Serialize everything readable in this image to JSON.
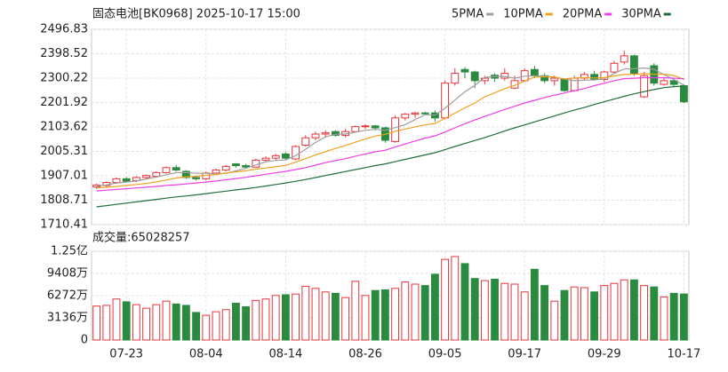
{
  "chart_data": [
    {
      "type": "candlestick",
      "title": "固态电池[BK0968] 2025-10-17 15:00",
      "up_color": "#e8333a",
      "down_color": "#2a8a3e",
      "categories": [
        null,
        null,
        null,
        "07-23",
        null,
        null,
        null,
        null,
        null,
        null,
        null,
        "08-04",
        null,
        null,
        null,
        null,
        null,
        null,
        null,
        "08-14",
        null,
        null,
        null,
        null,
        null,
        null,
        null,
        "08-26",
        null,
        null,
        null,
        null,
        null,
        null,
        null,
        "09-05",
        null,
        null,
        null,
        null,
        null,
        null,
        null,
        "09-17",
        null,
        null,
        null,
        null,
        null,
        null,
        null,
        "09-29",
        null,
        null,
        null,
        null,
        null,
        null,
        null,
        "10-17"
      ],
      "open": [
        1862,
        1868,
        1880,
        1895,
        1888,
        1900,
        1905,
        1920,
        1940,
        1925,
        1900,
        1895,
        1918,
        1930,
        1955,
        1948,
        1942,
        1970,
        1978,
        1995,
        1975,
        2030,
        2060,
        2075,
        2085,
        2070,
        2085,
        2105,
        2108,
        2100,
        2045,
        2140,
        2155,
        2160,
        2160,
        2140,
        2280,
        2335,
        2325,
        2290,
        2312,
        2300,
        2260,
        2290,
        2335,
        2310,
        2290,
        2295,
        2250,
        2300,
        2315,
        2295,
        2325,
        2365,
        2390,
        2225,
        2350,
        2275,
        2290,
        2270
      ],
      "high": [
        1875,
        1885,
        1900,
        1902,
        1905,
        1912,
        1925,
        1945,
        1950,
        1930,
        1908,
        1925,
        1935,
        1950,
        1958,
        1955,
        1975,
        1985,
        1995,
        2002,
        2030,
        2070,
        2085,
        2090,
        2090,
        2095,
        2110,
        2115,
        2112,
        2105,
        2150,
        2160,
        2165,
        2165,
        2170,
        2290,
        2340,
        2345,
        2330,
        2310,
        2320,
        2340,
        2310,
        2340,
        2350,
        2320,
        2310,
        2300,
        2310,
        2325,
        2330,
        2330,
        2370,
        2410,
        2395,
        2325,
        2360,
        2300,
        2295,
        2275
      ],
      "low": [
        1855,
        1860,
        1875,
        1880,
        1882,
        1895,
        1900,
        1915,
        1925,
        1895,
        1888,
        1890,
        1912,
        1925,
        1940,
        1935,
        1940,
        1962,
        1970,
        1970,
        1970,
        2025,
        2050,
        2060,
        2065,
        2062,
        2080,
        2095,
        2090,
        2040,
        2040,
        2130,
        2140,
        2150,
        2125,
        2135,
        2270,
        2300,
        2260,
        2275,
        2285,
        2290,
        2255,
        2285,
        2300,
        2280,
        2270,
        2245,
        2245,
        2290,
        2290,
        2285,
        2320,
        2355,
        2310,
        2220,
        2270,
        2270,
        2265,
        2200
      ],
      "close": [
        1870,
        1880,
        1895,
        1885,
        1900,
        1908,
        1920,
        1940,
        1930,
        1900,
        1895,
        1918,
        1930,
        1945,
        1948,
        1942,
        1970,
        1978,
        1988,
        1978,
        2025,
        2060,
        2075,
        2080,
        2070,
        2085,
        2105,
        2108,
        2100,
        2050,
        2140,
        2155,
        2160,
        2158,
        2140,
        2280,
        2320,
        2325,
        2290,
        2300,
        2300,
        2320,
        2290,
        2330,
        2310,
        2290,
        2300,
        2250,
        2300,
        2315,
        2295,
        2325,
        2360,
        2390,
        2320,
        2310,
        2280,
        2290,
        2275,
        2205
      ],
      "series": [
        {
          "name": "5PMA",
          "color": "#9e9e9e",
          "values": [
            1865,
            1870,
            1878,
            1882,
            1886,
            1894,
            1902,
            1911,
            1920,
            1920,
            1917,
            1917,
            1915,
            1917,
            1927,
            1937,
            1951,
            1963,
            1969,
            1971,
            1988,
            2014,
            2041,
            2064,
            2074,
            2075,
            2083,
            2090,
            2094,
            2090,
            2101,
            2113,
            2133,
            2153,
            2151,
            2179,
            2212,
            2245,
            2271,
            2303,
            2307,
            2307,
            2300,
            2308,
            2310,
            2308,
            2304,
            2296,
            2290,
            2292,
            2293,
            2297,
            2319,
            2337,
            2338,
            2341,
            2336,
            2314,
            2295,
            2272
          ]
        },
        {
          "name": "10PMA",
          "color": "#f0a020",
          "values": [
            1858,
            1861,
            1864,
            1868,
            1872,
            1876,
            1882,
            1890,
            1898,
            1903,
            1905,
            1909,
            1912,
            1918,
            1923,
            1927,
            1934,
            1938,
            1943,
            1949,
            1962,
            1976,
            1991,
            2004,
            2017,
            2029,
            2042,
            2055,
            2067,
            2074,
            2086,
            2095,
            2104,
            2112,
            2118,
            2138,
            2159,
            2181,
            2200,
            2225,
            2241,
            2258,
            2271,
            2288,
            2305,
            2306,
            2304,
            2297,
            2301,
            2302,
            2301,
            2302,
            2309,
            2315,
            2316,
            2318,
            2316,
            2316,
            2311,
            2295
          ]
        },
        {
          "name": "20PMA",
          "color": "#ee3ee6",
          "values": [
            1846,
            1849,
            1852,
            1855,
            1858,
            1861,
            1864,
            1868,
            1871,
            1874,
            1878,
            1882,
            1886,
            1891,
            1896,
            1901,
            1907,
            1913,
            1919,
            1925,
            1932,
            1940,
            1950,
            1960,
            1968,
            1976,
            1986,
            1995,
            2004,
            2010,
            2023,
            2035,
            2047,
            2059,
            2068,
            2083,
            2100,
            2117,
            2132,
            2146,
            2160,
            2174,
            2187,
            2200,
            2211,
            2222,
            2232,
            2240,
            2250,
            2258,
            2270,
            2280,
            2290,
            2298,
            2300,
            2302,
            2302,
            2302,
            2300,
            2298
          ]
        },
        {
          "name": "30PMA",
          "color": "#1f6f3a",
          "values": [
            1782,
            1787,
            1792,
            1797,
            1802,
            1807,
            1812,
            1817,
            1822,
            1826,
            1830,
            1835,
            1840,
            1845,
            1850,
            1855,
            1860,
            1866,
            1872,
            1878,
            1885,
            1892,
            1900,
            1908,
            1916,
            1924,
            1932,
            1940,
            1948,
            1955,
            1964,
            1973,
            1982,
            1991,
            2000,
            2012,
            2025,
            2037,
            2049,
            2061,
            2074,
            2087,
            2100,
            2112,
            2124,
            2136,
            2148,
            2160,
            2172,
            2182,
            2194,
            2205,
            2216,
            2227,
            2237,
            2246,
            2254,
            2262,
            2266,
            2268
          ]
        }
      ],
      "ylim": [
        1710.41,
        2496.83
      ],
      "yticks": [
        2496.83,
        2398.52,
        2300.22,
        2201.92,
        2103.62,
        2005.31,
        1907.01,
        1808.71,
        1710.41
      ],
      "grid": true
    },
    {
      "type": "bar",
      "title": "成交量:65028257",
      "values": [
        4800,
        4900,
        5800,
        5400,
        5000,
        4500,
        5000,
        5500,
        5100,
        4900,
        3900,
        3500,
        4000,
        4300,
        5200,
        4700,
        5600,
        5800,
        6300,
        6400,
        6500,
        7600,
        7300,
        6800,
        6600,
        6000,
        8300,
        6300,
        7000,
        7100,
        7300,
        8200,
        7900,
        7700,
        9300,
        11400,
        11800,
        10800,
        8700,
        8400,
        8600,
        8000,
        7900,
        6800,
        10000,
        7700,
        5500,
        7000,
        7500,
        7400,
        6800,
        7700,
        8000,
        8500,
        8500,
        7700,
        7500,
        6100,
        6600,
        6503
      ],
      "ylim": [
        0,
        12544
      ],
      "yticks": [
        {
          "value": 12544,
          "label": "1.25亿"
        },
        {
          "value": 9408,
          "label": "9408万"
        },
        {
          "value": 6272,
          "label": "6272万"
        },
        {
          "value": 3136,
          "label": "3136万"
        },
        0
      ],
      "grid": true
    }
  ]
}
